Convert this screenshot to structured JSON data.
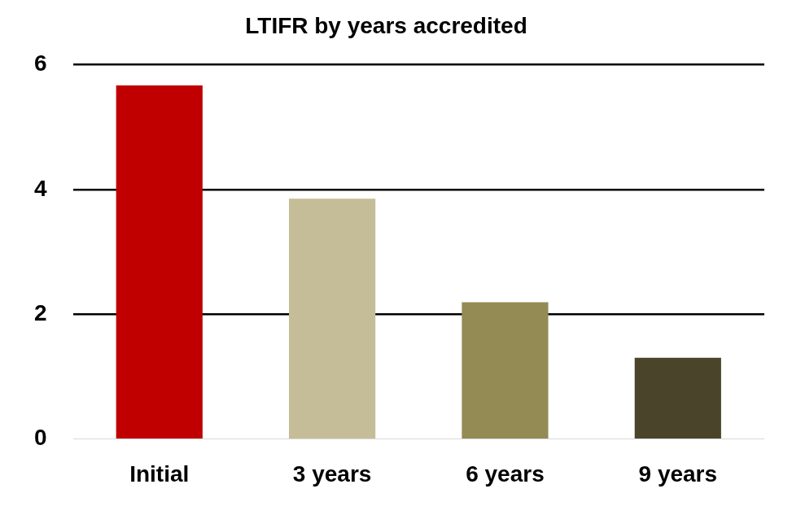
{
  "chart_data": {
    "type": "bar",
    "title": "LTIFR by years accredited",
    "categories": [
      "Initial",
      "3 years",
      "6 years",
      "9 years"
    ],
    "values": [
      5.67,
      3.85,
      2.19,
      1.3
    ],
    "colors": [
      "#c00000",
      "#c4bd97",
      "#948a54",
      "#4a452a"
    ],
    "ylim": [
      0,
      6
    ],
    "yticks": [
      0,
      2,
      4,
      6
    ],
    "grid": true
  }
}
